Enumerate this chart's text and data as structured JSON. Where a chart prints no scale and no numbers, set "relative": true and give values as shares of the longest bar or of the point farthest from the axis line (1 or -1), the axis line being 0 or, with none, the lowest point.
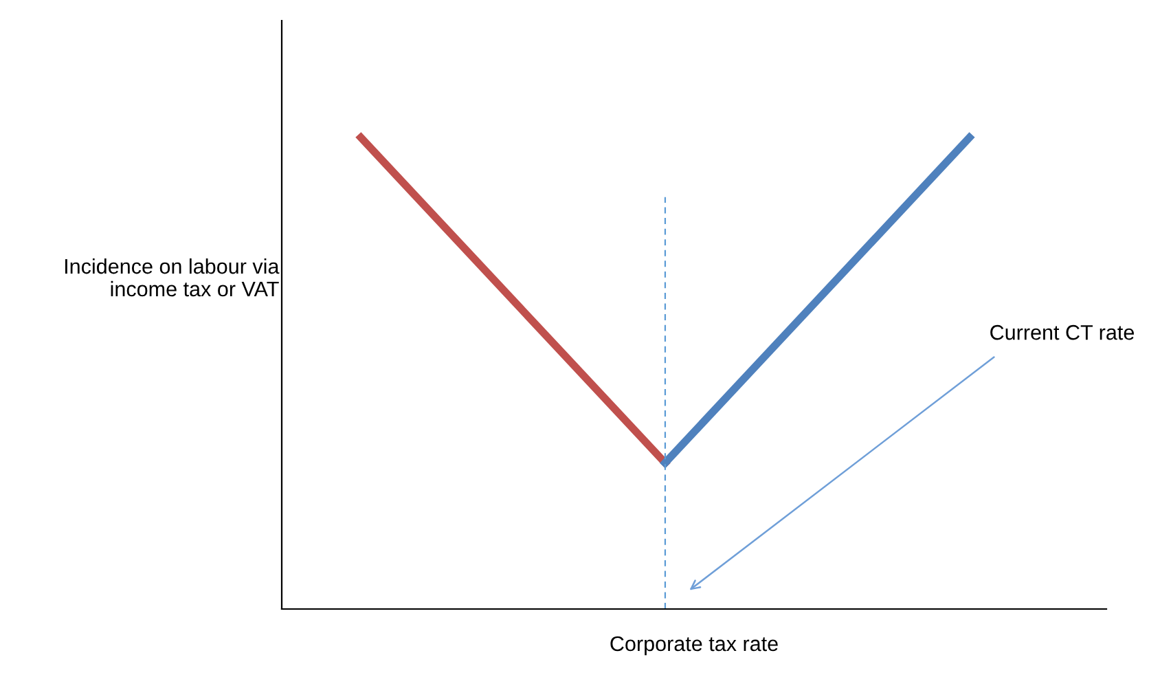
{
  "chart_data": {
    "type": "line",
    "relative": true,
    "xlabel": "Corporate tax rate",
    "ylabel": "Incidence on labour via\nincome tax or VAT",
    "categories": [
      null,
      null,
      null
    ],
    "series": [
      {
        "color": "#c0504d",
        "values": [
          1.0,
          0.31,
          null
        ]
      },
      {
        "color": "#4f81bd",
        "values": [
          null,
          0.31,
          1.0
        ]
      }
    ],
    "annotations": [
      "Current CT rate"
    ],
    "tick_labels": false,
    "legend": false,
    "grid": false,
    "marker": "none",
    "line_style": "solid"
  }
}
